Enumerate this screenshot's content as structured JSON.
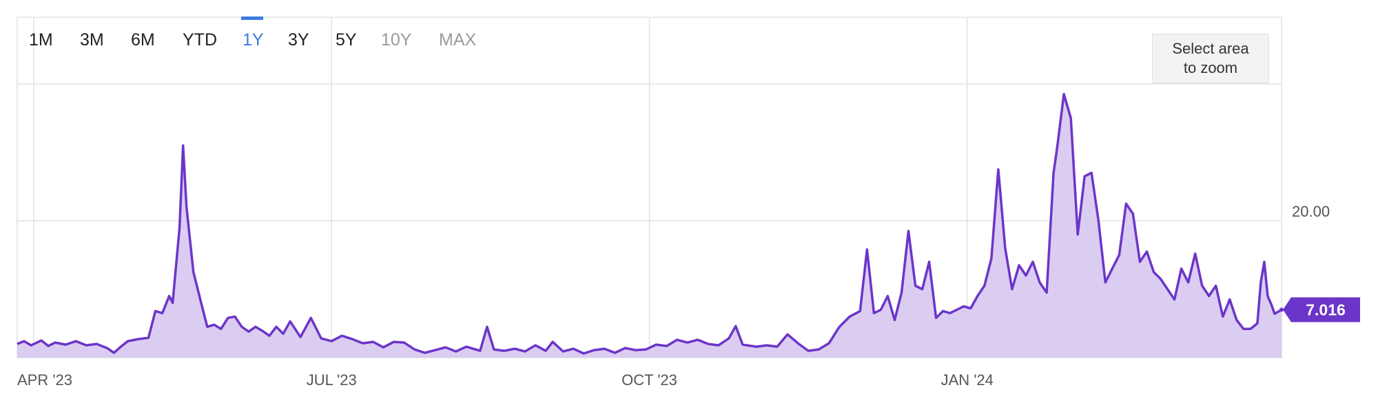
{
  "toolbar": {
    "ranges": [
      {
        "label": "1M",
        "state": "normal"
      },
      {
        "label": "3M",
        "state": "normal"
      },
      {
        "label": "6M",
        "state": "normal"
      },
      {
        "label": "YTD",
        "state": "normal"
      },
      {
        "label": "1Y",
        "state": "active"
      },
      {
        "label": "3Y",
        "state": "normal"
      },
      {
        "label": "5Y",
        "state": "normal"
      },
      {
        "label": "10Y",
        "state": "disabled"
      },
      {
        "label": "MAX",
        "state": "disabled"
      }
    ],
    "zoom_line1": "Select area",
    "zoom_line2": "to zoom"
  },
  "colors": {
    "series": "#6c35c9",
    "fill": "#d7c8f0",
    "active": "#3a7be0",
    "grid": "#e2e2e2"
  },
  "chart_data": {
    "type": "area",
    "ylim": [
      0,
      40
    ],
    "yticks": [
      20
    ],
    "ytick_labels": [
      "20.00"
    ],
    "x_start": "2023-04-01",
    "x_end": "2024-04-01",
    "xticks": [
      {
        "date": "2023-04-01",
        "label": "APR '23"
      },
      {
        "date": "2023-07-01",
        "label": "JUL '23"
      },
      {
        "date": "2023-10-01",
        "label": "OCT '23"
      },
      {
        "date": "2024-01-01",
        "label": "JAN '24"
      }
    ],
    "last_value_label": "7.016",
    "series": [
      {
        "points": [
          [
            "2023-04-01",
            2.0
          ],
          [
            "2023-04-03",
            2.4
          ],
          [
            "2023-04-05",
            1.8
          ],
          [
            "2023-04-08",
            2.5
          ],
          [
            "2023-04-10",
            1.7
          ],
          [
            "2023-04-12",
            2.2
          ],
          [
            "2023-04-15",
            1.9
          ],
          [
            "2023-04-18",
            2.4
          ],
          [
            "2023-04-21",
            1.8
          ],
          [
            "2023-04-24",
            2.0
          ],
          [
            "2023-04-27",
            1.4
          ],
          [
            "2023-04-29",
            0.7
          ],
          [
            "2023-05-01",
            1.6
          ],
          [
            "2023-05-03",
            2.4
          ],
          [
            "2023-05-06",
            2.7
          ],
          [
            "2023-05-09",
            2.9
          ],
          [
            "2023-05-11",
            6.8
          ],
          [
            "2023-05-13",
            6.5
          ],
          [
            "2023-05-15",
            9.0
          ],
          [
            "2023-05-16",
            8.0
          ],
          [
            "2023-05-18",
            19.0
          ],
          [
            "2023-05-19",
            31.0
          ],
          [
            "2023-05-20",
            22.0
          ],
          [
            "2023-05-22",
            12.5
          ],
          [
            "2023-05-24",
            8.5
          ],
          [
            "2023-05-26",
            4.5
          ],
          [
            "2023-05-28",
            4.8
          ],
          [
            "2023-05-30",
            4.2
          ],
          [
            "2023-06-01",
            5.8
          ],
          [
            "2023-06-03",
            6.0
          ],
          [
            "2023-06-05",
            4.5
          ],
          [
            "2023-06-07",
            3.8
          ],
          [
            "2023-06-09",
            4.5
          ],
          [
            "2023-06-11",
            3.9
          ],
          [
            "2023-06-13",
            3.2
          ],
          [
            "2023-06-15",
            4.5
          ],
          [
            "2023-06-17",
            3.5
          ],
          [
            "2023-06-19",
            5.3
          ],
          [
            "2023-06-22",
            3.0
          ],
          [
            "2023-06-25",
            5.8
          ],
          [
            "2023-06-28",
            2.8
          ],
          [
            "2023-07-01",
            2.4
          ],
          [
            "2023-07-04",
            3.2
          ],
          [
            "2023-07-07",
            2.7
          ],
          [
            "2023-07-10",
            2.1
          ],
          [
            "2023-07-13",
            2.3
          ],
          [
            "2023-07-16",
            1.5
          ],
          [
            "2023-07-19",
            2.3
          ],
          [
            "2023-07-22",
            2.2
          ],
          [
            "2023-07-25",
            1.2
          ],
          [
            "2023-07-28",
            0.7
          ],
          [
            "2023-07-31",
            1.1
          ],
          [
            "2023-08-03",
            1.5
          ],
          [
            "2023-08-06",
            0.9
          ],
          [
            "2023-08-09",
            1.6
          ],
          [
            "2023-08-13",
            1.0
          ],
          [
            "2023-08-15",
            4.5
          ],
          [
            "2023-08-17",
            1.2
          ],
          [
            "2023-08-20",
            1.0
          ],
          [
            "2023-08-23",
            1.3
          ],
          [
            "2023-08-26",
            0.9
          ],
          [
            "2023-08-29",
            1.8
          ],
          [
            "2023-09-01",
            1.0
          ],
          [
            "2023-09-03",
            2.3
          ],
          [
            "2023-09-06",
            0.9
          ],
          [
            "2023-09-09",
            1.3
          ],
          [
            "2023-09-12",
            0.6
          ],
          [
            "2023-09-15",
            1.1
          ],
          [
            "2023-09-18",
            1.3
          ],
          [
            "2023-09-21",
            0.7
          ],
          [
            "2023-09-24",
            1.4
          ],
          [
            "2023-09-27",
            1.1
          ],
          [
            "2023-09-30",
            1.2
          ],
          [
            "2023-10-03",
            1.9
          ],
          [
            "2023-10-06",
            1.7
          ],
          [
            "2023-10-09",
            2.6
          ],
          [
            "2023-10-12",
            2.2
          ],
          [
            "2023-10-15",
            2.6
          ],
          [
            "2023-10-18",
            2.0
          ],
          [
            "2023-10-21",
            1.8
          ],
          [
            "2023-10-24",
            2.8
          ],
          [
            "2023-10-26",
            4.6
          ],
          [
            "2023-10-28",
            1.9
          ],
          [
            "2023-11-01",
            1.6
          ],
          [
            "2023-11-04",
            1.8
          ],
          [
            "2023-11-07",
            1.6
          ],
          [
            "2023-11-10",
            3.4
          ],
          [
            "2023-11-13",
            2.1
          ],
          [
            "2023-11-16",
            1.0
          ],
          [
            "2023-11-19",
            1.2
          ],
          [
            "2023-11-22",
            2.1
          ],
          [
            "2023-11-25",
            4.5
          ],
          [
            "2023-11-28",
            6.0
          ],
          [
            "2023-12-01",
            6.8
          ],
          [
            "2023-12-03",
            15.8
          ],
          [
            "2023-12-05",
            6.5
          ],
          [
            "2023-12-07",
            7.0
          ],
          [
            "2023-12-09",
            9.0
          ],
          [
            "2023-12-11",
            5.5
          ],
          [
            "2023-12-13",
            9.5
          ],
          [
            "2023-12-15",
            18.5
          ],
          [
            "2023-12-17",
            10.5
          ],
          [
            "2023-12-19",
            10.0
          ],
          [
            "2023-12-21",
            14.0
          ],
          [
            "2023-12-23",
            5.8
          ],
          [
            "2023-12-25",
            6.8
          ],
          [
            "2023-12-27",
            6.5
          ],
          [
            "2023-12-29",
            7.0
          ],
          [
            "2023-12-31",
            7.5
          ],
          [
            "2024-01-02",
            7.2
          ],
          [
            "2024-01-04",
            9.0
          ],
          [
            "2024-01-06",
            10.5
          ],
          [
            "2024-01-08",
            14.5
          ],
          [
            "2024-01-10",
            27.5
          ],
          [
            "2024-01-12",
            16.0
          ],
          [
            "2024-01-14",
            10.0
          ],
          [
            "2024-01-16",
            13.5
          ],
          [
            "2024-01-18",
            12.0
          ],
          [
            "2024-01-20",
            14.0
          ],
          [
            "2024-01-22",
            11.0
          ],
          [
            "2024-01-24",
            9.5
          ],
          [
            "2024-01-26",
            27.0
          ],
          [
            "2024-01-27",
            30.5
          ],
          [
            "2024-01-29",
            38.5
          ],
          [
            "2024-01-31",
            35.0
          ],
          [
            "2024-02-02",
            18.0
          ],
          [
            "2024-02-04",
            26.5
          ],
          [
            "2024-02-06",
            27.0
          ],
          [
            "2024-02-08",
            20.0
          ],
          [
            "2024-02-10",
            11.0
          ],
          [
            "2024-02-12",
            13.0
          ],
          [
            "2024-02-14",
            15.0
          ],
          [
            "2024-02-16",
            22.5
          ],
          [
            "2024-02-18",
            21.0
          ],
          [
            "2024-02-20",
            14.0
          ],
          [
            "2024-02-22",
            15.5
          ],
          [
            "2024-02-24",
            12.5
          ],
          [
            "2024-02-26",
            11.5
          ],
          [
            "2024-02-28",
            10.0
          ],
          [
            "2024-03-01",
            8.5
          ],
          [
            "2024-03-03",
            13.0
          ],
          [
            "2024-03-05",
            11.0
          ],
          [
            "2024-03-07",
            15.2
          ],
          [
            "2024-03-09",
            10.5
          ],
          [
            "2024-03-11",
            9.0
          ],
          [
            "2024-03-13",
            10.5
          ],
          [
            "2024-03-15",
            6.0
          ],
          [
            "2024-03-17",
            8.5
          ],
          [
            "2024-03-19",
            5.5
          ],
          [
            "2024-03-21",
            4.2
          ],
          [
            "2024-03-23",
            4.2
          ],
          [
            "2024-03-25",
            5.0
          ],
          [
            "2024-03-26",
            11.0
          ],
          [
            "2024-03-27",
            14.0
          ],
          [
            "2024-03-28",
            9.0
          ],
          [
            "2024-03-29",
            7.8
          ],
          [
            "2024-03-30",
            6.4
          ],
          [
            "2024-04-01",
            7.0
          ]
        ]
      }
    ]
  }
}
